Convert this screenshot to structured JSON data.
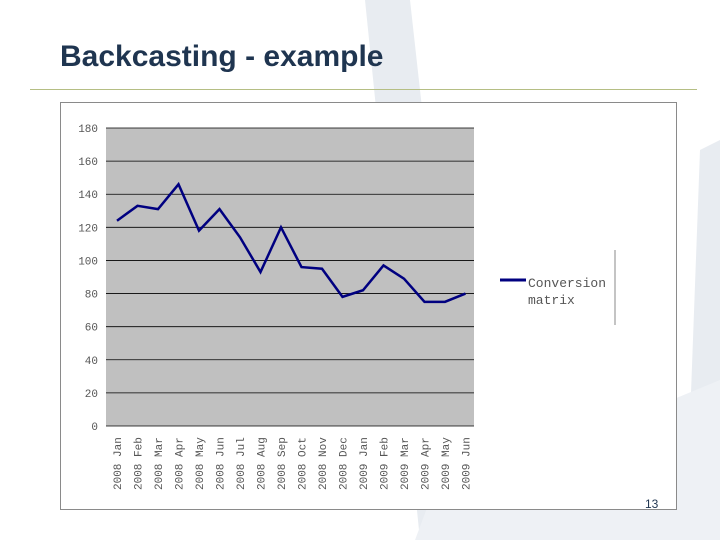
{
  "slide": {
    "title": "Backcasting - example",
    "page_number": "13"
  },
  "colors": {
    "title": "#1f3550",
    "rule": "#b5be84",
    "plot_bg": "#c0c0c0",
    "line": "#000080",
    "decor": "#e8ecf1"
  },
  "chart_data": {
    "type": "line",
    "title": "",
    "xlabel": "",
    "ylabel": "",
    "ylim": [
      0,
      180
    ],
    "yticks": [
      0,
      20,
      40,
      60,
      80,
      100,
      120,
      140,
      160,
      180
    ],
    "yticklabels": [
      "0",
      "20",
      "40",
      "60",
      "80",
      "100",
      "120",
      "140",
      "160",
      "180"
    ],
    "grid": "horizontal",
    "legend_position": "right",
    "categories": [
      "2008 Jan",
      "2008 Feb",
      "2008 Mar",
      "2008 Apr",
      "2008 May",
      "2008 Jun",
      "2008 Jul",
      "2008 Aug",
      "2008 Sep",
      "2008 Oct",
      "2008 Nov",
      "2008 Dec",
      "2009 Jan",
      "2009 Feb",
      "2009 Mar",
      "2009 Apr",
      "2009 May",
      "2009 Jun"
    ],
    "series": [
      {
        "name": "Conversion matrix",
        "legend_lines": [
          "Conversion",
          "matrix"
        ],
        "values": [
          124,
          133,
          131,
          146,
          118,
          131,
          114,
          93,
          120,
          96,
          95,
          78,
          82,
          97,
          89,
          75,
          75,
          80
        ]
      }
    ]
  }
}
